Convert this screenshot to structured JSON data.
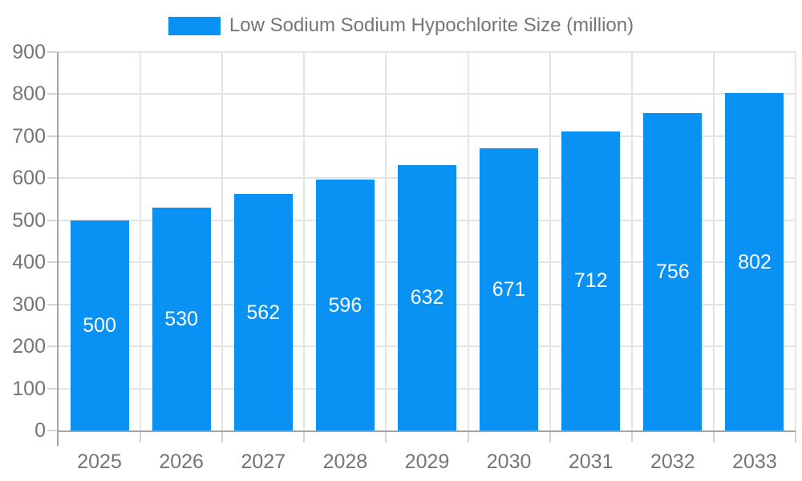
{
  "chart_data": {
    "type": "bar",
    "title": "Low Sodium Sodium Hypochlorite Size (million)",
    "categories": [
      "2025",
      "2026",
      "2027",
      "2028",
      "2029",
      "2030",
      "2031",
      "2032",
      "2033"
    ],
    "values": [
      500,
      530,
      562,
      596,
      632,
      671,
      712,
      756,
      802
    ],
    "xlabel": "",
    "ylabel": "",
    "ylim": [
      0,
      900
    ],
    "yticks": [
      0,
      100,
      200,
      300,
      400,
      500,
      600,
      700,
      800,
      900
    ],
    "grid": "both",
    "legend_position": "top",
    "bar_value_labels": "inside-center"
  },
  "colors": {
    "bar": "#0991f4",
    "bar_label": "#ffffff",
    "axis_line": "#a3a3a3",
    "gridline": "#e4e4e4",
    "tick": "#d4d4d4",
    "axis_label": "#757575",
    "legend_text": "#757575",
    "background": "#ffffff"
  }
}
